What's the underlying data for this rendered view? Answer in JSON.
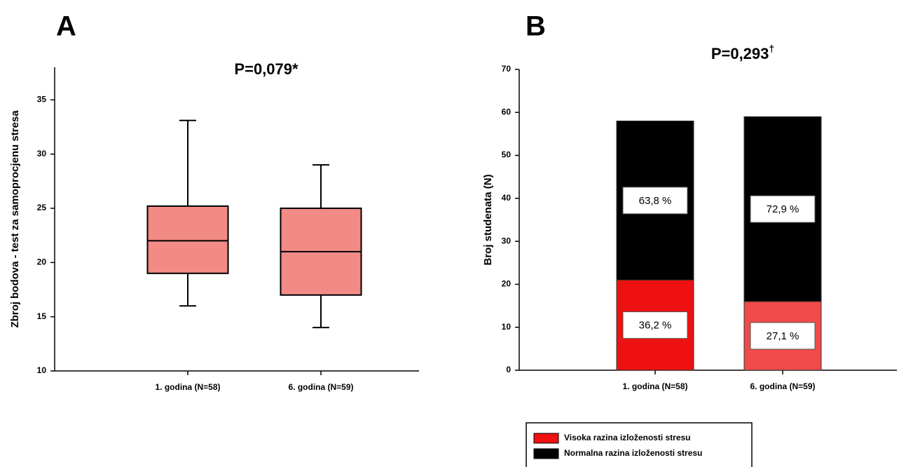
{
  "chart_data": [
    {
      "type": "box",
      "panel": "A",
      "title": "P=0,079*",
      "y_label": "Zbroj bodova - test za samoprocjenu stresa",
      "categories": [
        "1. godina (N=58)",
        "6. godina (N=59)"
      ],
      "color": "#f28b86",
      "boxes": [
        {
          "min": 16,
          "q1": 19,
          "median": 22,
          "q3": 25.2,
          "max": 33.1
        },
        {
          "min": 14,
          "q1": 17,
          "median": 21,
          "q3": 25,
          "max": 29
        }
      ],
      "ylim": [
        10,
        38
      ],
      "yticks": [
        10,
        15,
        20,
        25,
        30,
        35
      ]
    },
    {
      "type": "stacked_bar",
      "panel": "B",
      "title": "P=0,293",
      "title_mark": "†",
      "y_label": "Broj studenata (N)",
      "categories": [
        "1. godina (N=58)",
        "6. godina (N=59)"
      ],
      "series": [
        {
          "name": "Visoka razina izloženosti stresu",
          "color": "#ee1111",
          "colors": [
            "#ee1111",
            "#f04a4a"
          ],
          "values": [
            21,
            16
          ],
          "share_labels": [
            "36,2 %",
            "27,1 %"
          ]
        },
        {
          "name": "Normalna razina izloženosti stresu",
          "color": "#000000",
          "values": [
            37,
            43
          ],
          "share_labels": [
            "63,8 %",
            "72,9 %"
          ]
        }
      ],
      "ylim": [
        0,
        70
      ],
      "yticks": [
        0,
        10,
        20,
        30,
        40,
        50,
        60,
        70
      ]
    }
  ]
}
